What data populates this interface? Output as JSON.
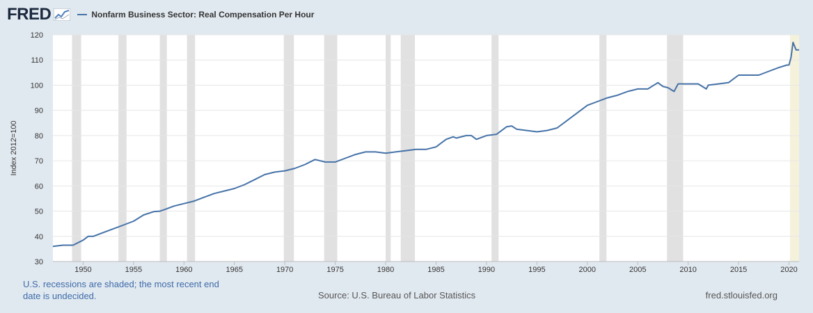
{
  "header": {
    "logo_text": "FRED",
    "legend_label": "Nonfarm Business Sector: Real Compensation Per Hour"
  },
  "footer": {
    "recession_note": "U.S. recessions are shaded; the most recent end date is undecided.",
    "source": "Source: U.S. Bureau of Labor Statistics",
    "site": "fred.stlouisfed.org"
  },
  "colors": {
    "line": "#4572a7",
    "recession": "#e1e1e1",
    "recent_recession": "#f5f2dc",
    "background": "#e1e9f0"
  },
  "chart_data": {
    "type": "line",
    "title": "",
    "ylabel": "Index 2012=100",
    "xlabel": "",
    "xlim": [
      1947.0,
      2021.0
    ],
    "ylim": [
      30,
      120
    ],
    "yticks": [
      30,
      40,
      50,
      60,
      70,
      80,
      90,
      100,
      110,
      120
    ],
    "xticks": [
      1950,
      1955,
      1960,
      1965,
      1970,
      1975,
      1980,
      1985,
      1990,
      1995,
      2000,
      2005,
      2010,
      2015,
      2020
    ],
    "grid": true,
    "legend": "top-left",
    "recessions": [
      [
        1948.9,
        1949.8
      ],
      [
        1953.5,
        1954.3
      ],
      [
        1957.6,
        1958.3
      ],
      [
        1960.3,
        1961.1
      ],
      [
        1969.9,
        1970.9
      ],
      [
        1973.9,
        1975.2
      ],
      [
        1980.0,
        1980.5
      ],
      [
        1981.5,
        1982.9
      ],
      [
        1990.5,
        1991.2
      ],
      [
        2001.2,
        2001.9
      ],
      [
        2007.9,
        2009.5
      ]
    ],
    "recent_recession": [
      2020.1,
      2021.0
    ],
    "series": [
      {
        "name": "Nonfarm Business Sector: Real Compensation Per Hour",
        "x": [
          1947.0,
          1948.0,
          1949.0,
          1950.0,
          1950.5,
          1951.0,
          1952.0,
          1953.0,
          1954.0,
          1955.0,
          1956.0,
          1957.0,
          1957.6,
          1958.0,
          1959.0,
          1960.0,
          1961.0,
          1962.0,
          1963.0,
          1964.0,
          1965.0,
          1966.0,
          1967.0,
          1968.0,
          1969.0,
          1970.0,
          1971.0,
          1972.0,
          1973.0,
          1974.0,
          1975.0,
          1976.0,
          1977.0,
          1978.0,
          1979.0,
          1980.0,
          1981.0,
          1982.0,
          1983.0,
          1984.0,
          1985.0,
          1986.0,
          1986.7,
          1987.0,
          1988.0,
          1988.5,
          1989.0,
          1990.0,
          1991.0,
          1992.0,
          1992.5,
          1993.0,
          1994.0,
          1995.0,
          1996.0,
          1997.0,
          1998.0,
          1999.0,
          2000.0,
          2001.0,
          2002.0,
          2003.0,
          2004.0,
          2005.0,
          2006.0,
          2007.0,
          2007.5,
          2008.0,
          2008.6,
          2009.0,
          2010.0,
          2011.0,
          2011.8,
          2012.0,
          2013.0,
          2014.0,
          2015.0,
          2016.0,
          2017.0,
          2018.0,
          2019.0,
          2019.8,
          2020.0,
          2020.2,
          2020.4,
          2020.7,
          2021.0
        ],
        "values": [
          36.0,
          36.5,
          36.5,
          38.5,
          40.0,
          40.0,
          41.5,
          43.0,
          44.5,
          46.0,
          48.5,
          49.8,
          50.0,
          50.5,
          52.0,
          53.0,
          54.0,
          55.5,
          57.0,
          58.0,
          59.0,
          60.5,
          62.5,
          64.5,
          65.5,
          66.0,
          67.0,
          68.5,
          70.5,
          69.5,
          69.5,
          71.0,
          72.5,
          73.5,
          73.5,
          73.0,
          73.5,
          74.0,
          74.5,
          74.5,
          75.5,
          78.5,
          79.5,
          79.0,
          80.0,
          80.0,
          78.5,
          80.0,
          80.5,
          83.5,
          83.8,
          82.5,
          82.0,
          81.5,
          82.0,
          83.0,
          86.0,
          89.0,
          92.0,
          93.5,
          95.0,
          96.0,
          97.5,
          98.5,
          98.5,
          101.0,
          99.5,
          99.0,
          97.5,
          100.5,
          100.5,
          100.5,
          98.5,
          100.0,
          100.5,
          101.0,
          104.0,
          104.0,
          104.0,
          105.5,
          107.0,
          108.0,
          108.0,
          111.0,
          117.0,
          114.0,
          114.0
        ]
      }
    ]
  }
}
